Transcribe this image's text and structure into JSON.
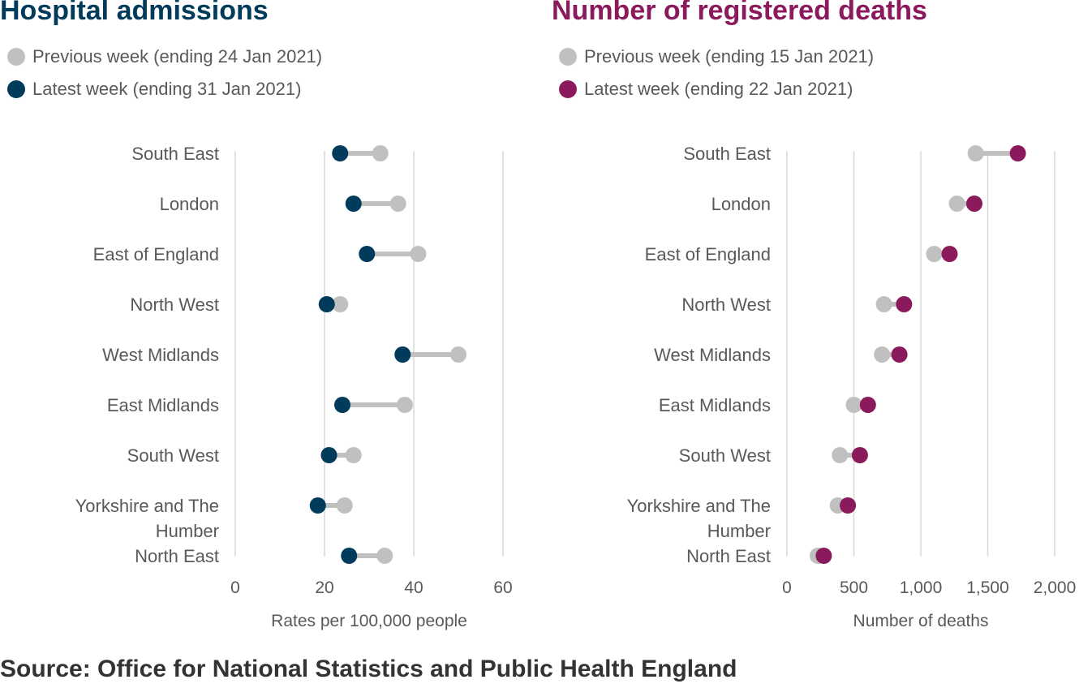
{
  "colors": {
    "previous": "#c0c0c0",
    "connector": "#c0c0c0",
    "admissions_latest": "#003b5c",
    "deaths_latest": "#8b1a5c",
    "gridline": "#d9d9d9",
    "text": "#595959"
  },
  "source": "Source: Office for National Statistics and Public Health England",
  "chart_data": [
    {
      "type": "dumbbell",
      "title": "Hospital admissions",
      "legend": {
        "previous": "Previous week (ending 24 Jan 2021)",
        "latest": "Latest week (ending 31 Jan 2021)"
      },
      "categories": [
        [
          "South East"
        ],
        [
          "London"
        ],
        [
          "East of England"
        ],
        [
          "North West"
        ],
        [
          "West Midlands"
        ],
        [
          "East Midlands"
        ],
        [
          "South West"
        ],
        [
          "Yorkshire and The",
          "Humber"
        ],
        [
          "North East"
        ]
      ],
      "series": [
        {
          "name": "Previous week (ending 24 Jan 2021)",
          "values": [
            32.5,
            36.5,
            41,
            23.5,
            50,
            38,
            26.5,
            24.5,
            33.5
          ]
        },
        {
          "name": "Latest week (ending 31 Jan 2021)",
          "values": [
            23.5,
            26.5,
            29.5,
            20.5,
            37.5,
            24,
            21,
            18.5,
            25.5
          ]
        }
      ],
      "xlabel": "Rates per 100,000 people",
      "xlim": [
        0,
        60
      ],
      "xticks": [
        0,
        20,
        40,
        60
      ],
      "xtick_labels": [
        "0",
        "20",
        "40",
        "60"
      ],
      "grid": true
    },
    {
      "type": "dumbbell",
      "title": "Number of registered deaths",
      "legend": {
        "previous": "Previous week (ending 15 Jan 2021)",
        "latest": "Latest week (ending 22 Jan 2021)"
      },
      "categories": [
        [
          "South East"
        ],
        [
          "London"
        ],
        [
          "East of England"
        ],
        [
          "North West"
        ],
        [
          "West Midlands"
        ],
        [
          "East Midlands"
        ],
        [
          "South West"
        ],
        [
          "Yorkshire and The",
          "Humber"
        ],
        [
          "North East"
        ]
      ],
      "series": [
        {
          "name": "Previous week (ending 15 Jan 2021)",
          "values": [
            1410,
            1270,
            1100,
            725,
            710,
            500,
            395,
            380,
            230
          ]
        },
        {
          "name": "Latest week (ending 22 Jan 2021)",
          "values": [
            1725,
            1400,
            1215,
            875,
            840,
            605,
            545,
            455,
            275
          ]
        }
      ],
      "xlabel": "Number of deaths",
      "xlim": [
        0,
        2000
      ],
      "xticks": [
        0,
        500,
        1000,
        1500,
        2000
      ],
      "xtick_labels": [
        "0",
        "500",
        "1,000",
        "1,500",
        "2,000"
      ],
      "grid": true
    }
  ]
}
